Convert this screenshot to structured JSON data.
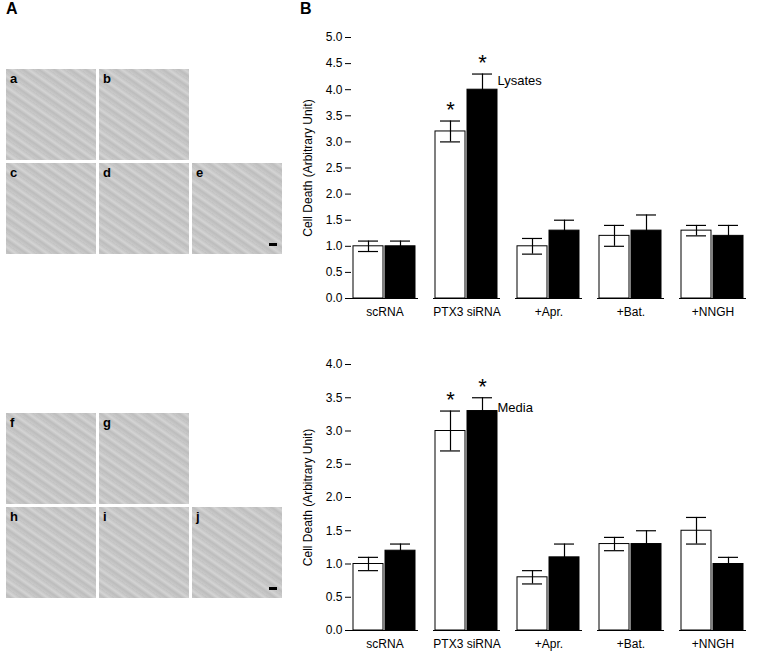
{
  "panel_labels": [
    "A",
    "B"
  ],
  "image_tiles": [
    [
      [
        "a",
        "b"
      ],
      [
        "c",
        "d",
        "e"
      ]
    ],
    [
      [
        "f",
        "g"
      ],
      [
        "h",
        "i",
        "j"
      ]
    ]
  ],
  "chart_data": [
    {
      "type": "bar",
      "annotation": "Lysates",
      "y_label": "Cell Death (Arbitrary Unit)",
      "categories": [
        "scRNA",
        "PTX3 siRNA",
        "+Apr.",
        "+Bat.",
        "+NNGH"
      ],
      "series": [
        {
          "color": "white",
          "values": [
            1.0,
            3.2,
            1.0,
            1.2,
            1.3
          ],
          "errors": [
            0.1,
            0.2,
            0.15,
            0.2,
            0.1
          ],
          "significance": [
            null,
            "*",
            null,
            null,
            null
          ]
        },
        {
          "color": "black",
          "values": [
            1.0,
            4.0,
            1.3,
            1.3,
            1.2
          ],
          "errors": [
            0.1,
            0.3,
            0.2,
            0.3,
            0.2
          ],
          "significance": [
            null,
            "*",
            null,
            null,
            null
          ]
        }
      ],
      "ylim": [
        0,
        5
      ],
      "yticks": [
        0,
        0.5,
        1,
        1.5,
        2,
        2.5,
        3,
        3.5,
        4,
        4.5,
        5
      ]
    },
    {
      "type": "bar",
      "annotation": "Media",
      "y_label": "Cell Death (Arbitrary Unit)",
      "categories": [
        "scRNA",
        "PTX3 siRNA",
        "+Apr.",
        "+Bat.",
        "+NNGH"
      ],
      "series": [
        {
          "color": "white",
          "values": [
            1.0,
            3.0,
            0.8,
            1.3,
            1.5
          ],
          "errors": [
            0.1,
            0.3,
            0.1,
            0.1,
            0.2
          ],
          "significance": [
            null,
            "*",
            null,
            null,
            null
          ]
        },
        {
          "color": "black",
          "values": [
            1.2,
            3.3,
            1.1,
            1.3,
            1.0
          ],
          "errors": [
            0.1,
            0.2,
            0.2,
            0.2,
            0.1
          ],
          "significance": [
            null,
            "*",
            null,
            null,
            null
          ]
        }
      ],
      "ylim": [
        0,
        4
      ],
      "yticks": [
        0,
        0.5,
        1,
        1.5,
        2,
        2.5,
        3,
        3.5,
        4
      ]
    }
  ]
}
